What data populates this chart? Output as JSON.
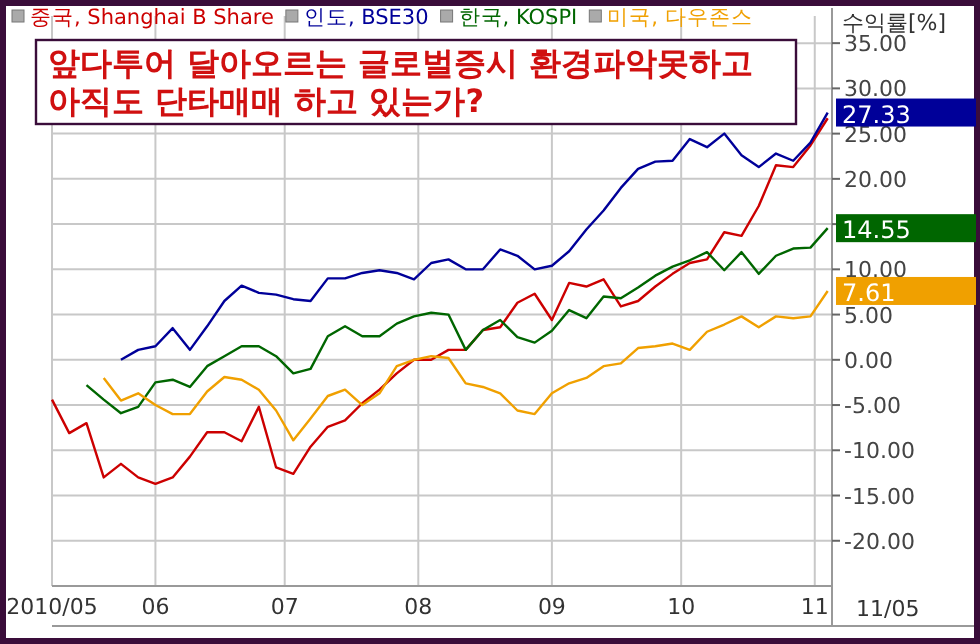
{
  "chart_data": {
    "type": "line",
    "title": "앞다투어 달아오르는 글로벌증시 환경파악못하고\n아직도 단타매매 하고 있는가?",
    "ylabel": "수익률[%]",
    "x": [
      "2010-05-08",
      "2010-05-12",
      "2010-05-16",
      "2010-05-20",
      "2010-05-24",
      "2010-05-28",
      "2010-06-01",
      "2010-06-05",
      "2010-06-09",
      "2010-06-13",
      "2010-06-17",
      "2010-06-21",
      "2010-06-25",
      "2010-06-29",
      "2010-07-03",
      "2010-07-07",
      "2010-07-11",
      "2010-07-15",
      "2010-07-19",
      "2010-07-23",
      "2010-07-27",
      "2010-07-31",
      "2010-08-04",
      "2010-08-08",
      "2010-08-12",
      "2010-08-16",
      "2010-08-20",
      "2010-08-24",
      "2010-08-28",
      "2010-09-01",
      "2010-09-05",
      "2010-09-09",
      "2010-09-13",
      "2010-09-17",
      "2010-09-21",
      "2010-09-25",
      "2010-09-29",
      "2010-10-03",
      "2010-10-07",
      "2010-10-11",
      "2010-10-15",
      "2010-10-19",
      "2010-10-23",
      "2010-10-27",
      "2010-10-31",
      "2010-11-04"
    ],
    "series": [
      {
        "name": "중국, Shanghai B Share",
        "color": "#cc0000",
        "values": [
          -4.4,
          -8.1,
          -7,
          -13,
          -11.5,
          -13,
          -13.7,
          -13,
          -10.7,
          -8,
          -8,
          -9,
          -5.2,
          -11.9,
          -12.6,
          -9.6,
          -7.4,
          -6.7,
          -4.8,
          -3.3,
          -1.5,
          0,
          0,
          1.1,
          1.1,
          3.3,
          3.6,
          6.3,
          7.3,
          4.4,
          8.5,
          8.1,
          8.9,
          5.9,
          6.5,
          8.1,
          9.5,
          10.7,
          11.1,
          14.1,
          13.7,
          17,
          21.5,
          21.3,
          23.7,
          26.7
        ]
      },
      {
        "name": "인도, BSE30",
        "color": "#000099",
        "values": [
          null,
          null,
          null,
          null,
          0,
          1.1,
          1.5,
          3.5,
          1.1,
          3.7,
          6.5,
          8.2,
          7.4,
          7.2,
          6.7,
          6.5,
          9,
          9,
          9.6,
          9.9,
          9.6,
          8.9,
          10.7,
          11.1,
          10,
          10,
          12.2,
          11.5,
          10,
          10.4,
          12,
          14.4,
          16.5,
          19,
          21.1,
          21.9,
          22,
          24.4,
          23.5,
          25,
          22.6,
          21.3,
          22.8,
          22,
          24,
          27.33
        ],
        "value_labels": [
          null,
          null,
          null,
          null,
          null,
          null,
          null,
          null,
          null,
          null,
          null,
          null,
          null,
          null,
          null,
          null,
          null,
          null,
          null,
          null,
          null,
          null,
          null,
          null,
          null,
          null,
          null,
          null,
          null,
          null,
          null,
          null,
          null,
          null,
          null,
          null,
          null,
          null,
          null,
          null,
          null,
          null,
          null,
          null,
          null,
          "27.33"
        ]
      },
      {
        "name": "한국, KOSPI",
        "color": "#006600",
        "values": [
          null,
          null,
          -2.8,
          -4.4,
          -5.9,
          -5.2,
          -2.5,
          -2.2,
          -3,
          -0.7,
          0.4,
          1.5,
          1.5,
          0.4,
          -1.5,
          -1,
          2.6,
          3.7,
          2.6,
          2.6,
          4,
          4.8,
          5.2,
          5,
          1.1,
          3.3,
          4.4,
          2.5,
          1.9,
          3.2,
          5.5,
          4.6,
          7,
          6.8,
          8,
          9.3,
          10.3,
          11,
          11.9,
          9.9,
          11.9,
          9.5,
          11.5,
          12.3,
          12.4,
          14.55
        ],
        "value_labels": [
          null,
          null,
          null,
          null,
          null,
          null,
          null,
          null,
          null,
          null,
          null,
          null,
          null,
          null,
          null,
          null,
          null,
          null,
          null,
          null,
          null,
          null,
          null,
          null,
          null,
          null,
          null,
          null,
          null,
          null,
          null,
          null,
          null,
          null,
          null,
          null,
          null,
          null,
          null,
          null,
          null,
          null,
          null,
          null,
          null,
          "14.55"
        ]
      },
      {
        "name": "미국, 다우존스",
        "color": "#f0a000",
        "values": [
          null,
          null,
          null,
          -2,
          -4.5,
          -3.7,
          -5,
          -6,
          -6,
          -3.5,
          -1.9,
          -2.2,
          -3.3,
          -5.6,
          -8.9,
          -6.5,
          -4,
          -3.3,
          -5,
          -3.7,
          -0.7,
          0,
          0.4,
          0.2,
          -2.6,
          -3,
          -3.7,
          -5.6,
          -6,
          -3.7,
          -2.6,
          -2,
          -0.7,
          -0.4,
          1.3,
          1.5,
          1.8,
          1.1,
          3.1,
          3.9,
          4.8,
          3.6,
          4.8,
          4.6,
          4.8,
          7.61
        ],
        "value_labels": [
          null,
          null,
          null,
          null,
          null,
          null,
          null,
          null,
          null,
          null,
          null,
          null,
          null,
          null,
          null,
          null,
          null,
          null,
          null,
          null,
          null,
          null,
          null,
          null,
          null,
          null,
          null,
          null,
          null,
          null,
          null,
          null,
          null,
          null,
          null,
          null,
          null,
          null,
          null,
          null,
          null,
          null,
          null,
          null,
          null,
          "7.61"
        ]
      }
    ],
    "xlim": [
      "2010-05-08",
      "2010-11-05"
    ],
    "xticks": [
      {
        "value": "2010-05-08",
        "label": "2010/05"
      },
      {
        "value": "2010-06-01",
        "label": "06"
      },
      {
        "value": "2010-07-01",
        "label": "07"
      },
      {
        "value": "2010-08-01",
        "label": "08"
      },
      {
        "value": "2010-09-01",
        "label": "09"
      },
      {
        "value": "2010-10-01",
        "label": "10"
      },
      {
        "value": "2010-11-01",
        "label": "11"
      }
    ],
    "annotations": [
      "11/05"
    ],
    "ylim": [
      -25,
      38
    ],
    "yticks": [
      {
        "value": -20,
        "label": "-20.00"
      },
      {
        "value": -15,
        "label": "-15.00"
      },
      {
        "value": -10,
        "label": "-10.00"
      },
      {
        "value": -5,
        "label": "-5.00"
      },
      {
        "value": 0,
        "label": "0.00"
      },
      {
        "value": 5,
        "label": "5.00"
      },
      {
        "value": 10,
        "label": "10.00"
      },
      {
        "value": 15,
        "label": null
      },
      {
        "value": 20,
        "label": "20.00"
      },
      {
        "value": 25,
        "label": "25.00"
      },
      {
        "value": 30,
        "label": "30.00"
      },
      {
        "value": 35,
        "label": "35.00"
      }
    ],
    "grid": true,
    "legend": "top",
    "marker": "none",
    "line_style": "solid"
  }
}
